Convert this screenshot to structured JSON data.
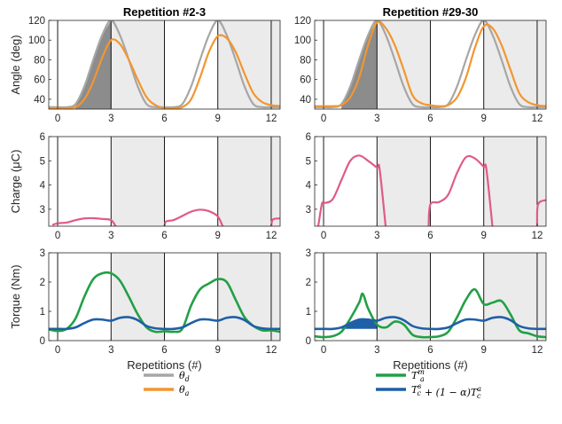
{
  "chart_data": [
    {
      "type": "line",
      "panel": "left-angle",
      "title": "Repetition #2-3",
      "xlabel": "",
      "ylabel": "Angle (deg)",
      "xlim": [
        -0.5,
        12.5
      ],
      "ylim": [
        30,
        120
      ],
      "xticks": [
        0,
        3,
        6,
        9,
        12
      ],
      "xticklabels": [
        "0",
        "3",
        "6",
        "9",
        "12"
      ],
      "yticks": [
        40,
        60,
        80,
        100,
        120
      ],
      "yticklabels": [
        "40",
        "60",
        "80",
        "100",
        "120"
      ],
      "series": [
        {
          "name": "θd",
          "color": "#a6a6a6",
          "x": [
            -0.5,
            0,
            0.5,
            1,
            1.5,
            2,
            2.5,
            3,
            3.5,
            4,
            4.5,
            5,
            5.5,
            6,
            6.5,
            7,
            7.5,
            8,
            8.5,
            9,
            9.5,
            10,
            10.5,
            11,
            11.5,
            12,
            12.5
          ],
          "y": [
            32,
            32,
            32,
            35,
            53,
            80,
            105,
            120,
            105,
            80,
            53,
            35,
            32,
            32,
            32,
            35,
            53,
            80,
            105,
            120,
            105,
            80,
            53,
            35,
            32,
            32,
            32
          ]
        },
        {
          "name": "θa",
          "color": "#f2962f",
          "x": [
            -0.5,
            0,
            0.5,
            1,
            1.5,
            2,
            2.5,
            3,
            3.5,
            4,
            4.5,
            5,
            5.5,
            6,
            6.5,
            7,
            7.5,
            8,
            8.5,
            9,
            9.5,
            10,
            10.5,
            11,
            11.5,
            12,
            12.5
          ],
          "y": [
            31,
            31,
            31,
            32,
            40,
            58,
            82,
            100,
            96,
            80,
            60,
            42,
            34,
            31,
            31,
            32,
            40,
            62,
            88,
            104,
            102,
            88,
            66,
            46,
            37,
            34,
            33
          ]
        }
      ]
    },
    {
      "type": "line",
      "panel": "right-angle",
      "title": "Repetition #29-30",
      "xlabel": "",
      "ylabel": "",
      "xlim": [
        -0.5,
        12.5
      ],
      "ylim": [
        30,
        120
      ],
      "xticks": [
        0,
        3,
        6,
        9,
        12
      ],
      "xticklabels": [
        "0",
        "3",
        "6",
        "9",
        "12"
      ],
      "yticks": [
        40,
        60,
        80,
        100,
        120
      ],
      "yticklabels": [
        "40",
        "60",
        "80",
        "100",
        "120"
      ],
      "series": [
        {
          "name": "θd",
          "color": "#a6a6a6",
          "x": [
            -0.5,
            0,
            0.5,
            1,
            1.5,
            2,
            2.5,
            3,
            3.5,
            4,
            4.5,
            5,
            5.5,
            6,
            6.5,
            7,
            7.5,
            8,
            8.5,
            9,
            9.5,
            10,
            10.5,
            11,
            11.5,
            12,
            12.5
          ],
          "y": [
            32,
            32,
            32,
            35,
            53,
            80,
            105,
            120,
            105,
            80,
            53,
            35,
            32,
            32,
            32,
            35,
            53,
            80,
            105,
            120,
            105,
            80,
            53,
            35,
            32,
            32,
            32
          ]
        },
        {
          "name": "θa",
          "color": "#f2962f",
          "x": [
            -0.5,
            0,
            0.5,
            1,
            1.5,
            2,
            2.5,
            3,
            3.5,
            4,
            4.5,
            5,
            5.5,
            6,
            6.5,
            7,
            7.5,
            8,
            8.5,
            9,
            9.5,
            10,
            10.5,
            11,
            11.5,
            12,
            12.5
          ],
          "y": [
            33,
            33,
            33,
            34,
            42,
            62,
            95,
            118,
            112,
            95,
            70,
            44,
            36,
            34,
            33,
            34,
            42,
            62,
            92,
            114,
            112,
            95,
            70,
            46,
            37,
            34,
            33
          ]
        }
      ]
    },
    {
      "type": "line",
      "panel": "left-charge",
      "title": "",
      "xlabel": "",
      "ylabel": "Charge (μC)",
      "xlim": [
        -0.5,
        12.5
      ],
      "ylim": [
        2.3,
        6
      ],
      "xticks": [
        0,
        3,
        6,
        9,
        12
      ],
      "xticklabels": [
        "0",
        "3",
        "6",
        "9",
        "12"
      ],
      "yticks": [
        3,
        4,
        5,
        6
      ],
      "yticklabels": [
        "3",
        "4",
        "5",
        "6"
      ],
      "series": [
        {
          "name": "Charge",
          "color": "#e05a88",
          "segments": [
            {
              "x": [
                -0.3,
                0,
                0.5,
                1,
                1.5,
                2,
                2.5,
                3,
                3.3
              ],
              "y": [
                2.35,
                2.42,
                2.45,
                2.55,
                2.62,
                2.63,
                2.6,
                2.55,
                2.25
              ]
            },
            {
              "x": [
                6,
                6.1,
                6.5,
                7,
                7.5,
                8,
                8.5,
                9,
                9.3
              ],
              "y": [
                2.3,
                2.5,
                2.55,
                2.72,
                2.9,
                2.98,
                2.92,
                2.7,
                2.25
              ]
            },
            {
              "x": [
                12,
                12.1,
                12.5
              ],
              "y": [
                2.3,
                2.58,
                2.62
              ]
            }
          ]
        }
      ]
    },
    {
      "type": "line",
      "panel": "right-charge",
      "title": "",
      "xlabel": "",
      "ylabel": "",
      "xlim": [
        -0.5,
        12.5
      ],
      "ylim": [
        2.3,
        6
      ],
      "xticks": [
        0,
        3,
        6,
        9,
        12
      ],
      "xticklabels": [
        "0",
        "3",
        "6",
        "9",
        "12"
      ],
      "yticks": [
        3,
        4,
        5,
        6
      ],
      "yticklabels": [
        "3",
        "4",
        "5",
        "6"
      ],
      "series": [
        {
          "name": "Charge",
          "color": "#e05a88",
          "segments": [
            {
              "x": [
                -0.3,
                -0.1,
                0,
                0.5,
                1,
                1.5,
                2,
                2.5,
                3,
                3.15,
                3.5
              ],
              "y": [
                2.3,
                3.2,
                3.25,
                3.4,
                4.2,
                5.0,
                5.22,
                5.0,
                4.72,
                4.65,
                2.2
              ]
            },
            {
              "x": [
                5.9,
                6.0,
                6.5,
                7,
                7.5,
                8,
                8.5,
                9,
                9.15,
                9.5
              ],
              "y": [
                2.3,
                3.2,
                3.3,
                3.6,
                4.5,
                5.15,
                5.1,
                4.75,
                4.65,
                2.2
              ]
            },
            {
              "x": [
                12,
                12.05,
                12.5
              ],
              "y": [
                2.3,
                3.2,
                3.38
              ]
            }
          ]
        }
      ]
    },
    {
      "type": "line",
      "panel": "left-torque",
      "title": "",
      "xlabel": "Repetitions (#)",
      "ylabel": "Torque (Nm)",
      "xlim": [
        -0.5,
        12.5
      ],
      "ylim": [
        0,
        3
      ],
      "xticks": [
        0,
        3,
        6,
        9,
        12
      ],
      "xticklabels": [
        "0",
        "3",
        "6",
        "9",
        "12"
      ],
      "yticks": [
        0,
        1,
        2,
        3
      ],
      "yticklabels": [
        "0",
        "1",
        "2",
        "3"
      ],
      "series": [
        {
          "name": "Tam",
          "color": "#22a046",
          "x": [
            -0.5,
            0,
            0.5,
            1,
            1.5,
            2,
            2.5,
            3,
            3.5,
            4,
            4.5,
            5,
            5.5,
            6,
            6.5,
            7,
            7.5,
            8,
            8.5,
            9,
            9.5,
            10,
            10.5,
            11,
            11.5,
            12,
            12.5
          ],
          "y": [
            0.38,
            0.33,
            0.4,
            0.75,
            1.5,
            2.1,
            2.3,
            2.3,
            2.05,
            1.5,
            0.9,
            0.45,
            0.3,
            0.32,
            0.3,
            0.4,
            1.2,
            1.75,
            1.95,
            2.1,
            2.0,
            1.4,
            0.8,
            0.5,
            0.35,
            0.35,
            0.3
          ]
        },
        {
          "name": "Tcs+(1−α)Tca",
          "color": "#1f5fa8",
          "x": [
            -0.5,
            0,
            0.5,
            1,
            1.5,
            2,
            2.5,
            3,
            3.5,
            4,
            4.5,
            5,
            5.5,
            6,
            6.5,
            7,
            7.5,
            8,
            8.5,
            9,
            9.5,
            10,
            10.5,
            11,
            11.5,
            12,
            12.5
          ],
          "y": [
            0.4,
            0.4,
            0.4,
            0.45,
            0.6,
            0.72,
            0.72,
            0.68,
            0.78,
            0.8,
            0.7,
            0.5,
            0.42,
            0.4,
            0.4,
            0.45,
            0.6,
            0.72,
            0.72,
            0.68,
            0.78,
            0.8,
            0.7,
            0.5,
            0.42,
            0.4,
            0.4
          ]
        }
      ]
    },
    {
      "type": "line",
      "panel": "right-torque",
      "title": "",
      "xlabel": "Repetitions (#)",
      "ylabel": "",
      "xlim": [
        -0.5,
        12.5
      ],
      "ylim": [
        0,
        3
      ],
      "xticks": [
        0,
        3,
        6,
        9,
        12
      ],
      "xticklabels": [
        "0",
        "3",
        "6",
        "9",
        "12"
      ],
      "yticks": [
        0,
        1,
        2,
        3
      ],
      "yticklabels": [
        "0",
        "1",
        "2",
        "3"
      ],
      "series": [
        {
          "name": "Tam",
          "color": "#22a046",
          "x": [
            -0.5,
            0,
            0.5,
            1,
            1.5,
            2,
            2.2,
            2.5,
            3,
            3.5,
            4,
            4.5,
            5,
            5.5,
            6,
            6.5,
            7,
            7.5,
            8,
            8.5,
            9,
            9.5,
            10,
            10.5,
            11,
            11.5,
            12,
            12.5
          ],
          "y": [
            0.15,
            0.12,
            0.15,
            0.3,
            0.75,
            1.3,
            1.6,
            1.1,
            0.55,
            0.45,
            0.65,
            0.55,
            0.2,
            0.12,
            0.12,
            0.15,
            0.3,
            0.8,
            1.4,
            1.75,
            1.25,
            1.3,
            1.35,
            0.9,
            0.35,
            0.25,
            0.15,
            0.12
          ]
        },
        {
          "name": "Tcs+(1−α)Tca",
          "color": "#1f5fa8",
          "x": [
            -0.5,
            0,
            0.5,
            1,
            1.5,
            2,
            2.5,
            3,
            3.5,
            4,
            4.5,
            5,
            5.5,
            6,
            6.5,
            7,
            7.5,
            8,
            8.5,
            9,
            9.5,
            10,
            10.5,
            11,
            11.5,
            12,
            12.5
          ],
          "y": [
            0.4,
            0.4,
            0.4,
            0.45,
            0.6,
            0.72,
            0.72,
            0.68,
            0.78,
            0.8,
            0.7,
            0.5,
            0.42,
            0.4,
            0.4,
            0.45,
            0.6,
            0.72,
            0.72,
            0.68,
            0.78,
            0.8,
            0.7,
            0.5,
            0.42,
            0.4,
            0.4
          ]
        }
      ]
    }
  ],
  "shaded_intervals": [
    [
      3,
      6
    ],
    [
      9,
      12.5
    ]
  ],
  "divider_lines_x": [
    0,
    3,
    6,
    9,
    12
  ],
  "colors": {
    "theta_d": "#a6a6a6",
    "theta_a": "#f2962f",
    "torque_measured": "#22a046",
    "torque_model": "#1f5fa8",
    "charge": "#e05a88",
    "shade_band": "#ebebeb",
    "fill_area": "#8c8c8c",
    "fill_torque": "#1f5fa8"
  },
  "legend_left": [
    {
      "symbol": "θ",
      "sub": "d",
      "color": "#a6a6a6"
    },
    {
      "symbol": "θ",
      "sub": "a",
      "color": "#f2962f"
    }
  ],
  "legend_right": [
    {
      "text": "T",
      "sup": "m",
      "sub": "a",
      "color": "#22a046"
    },
    {
      "text": "T",
      "sup": "s",
      "sub": "c",
      "tail": "+ (1 − α)T",
      "tailsup": "a",
      "tailsub": "c",
      "color": "#1f5fa8"
    }
  ]
}
